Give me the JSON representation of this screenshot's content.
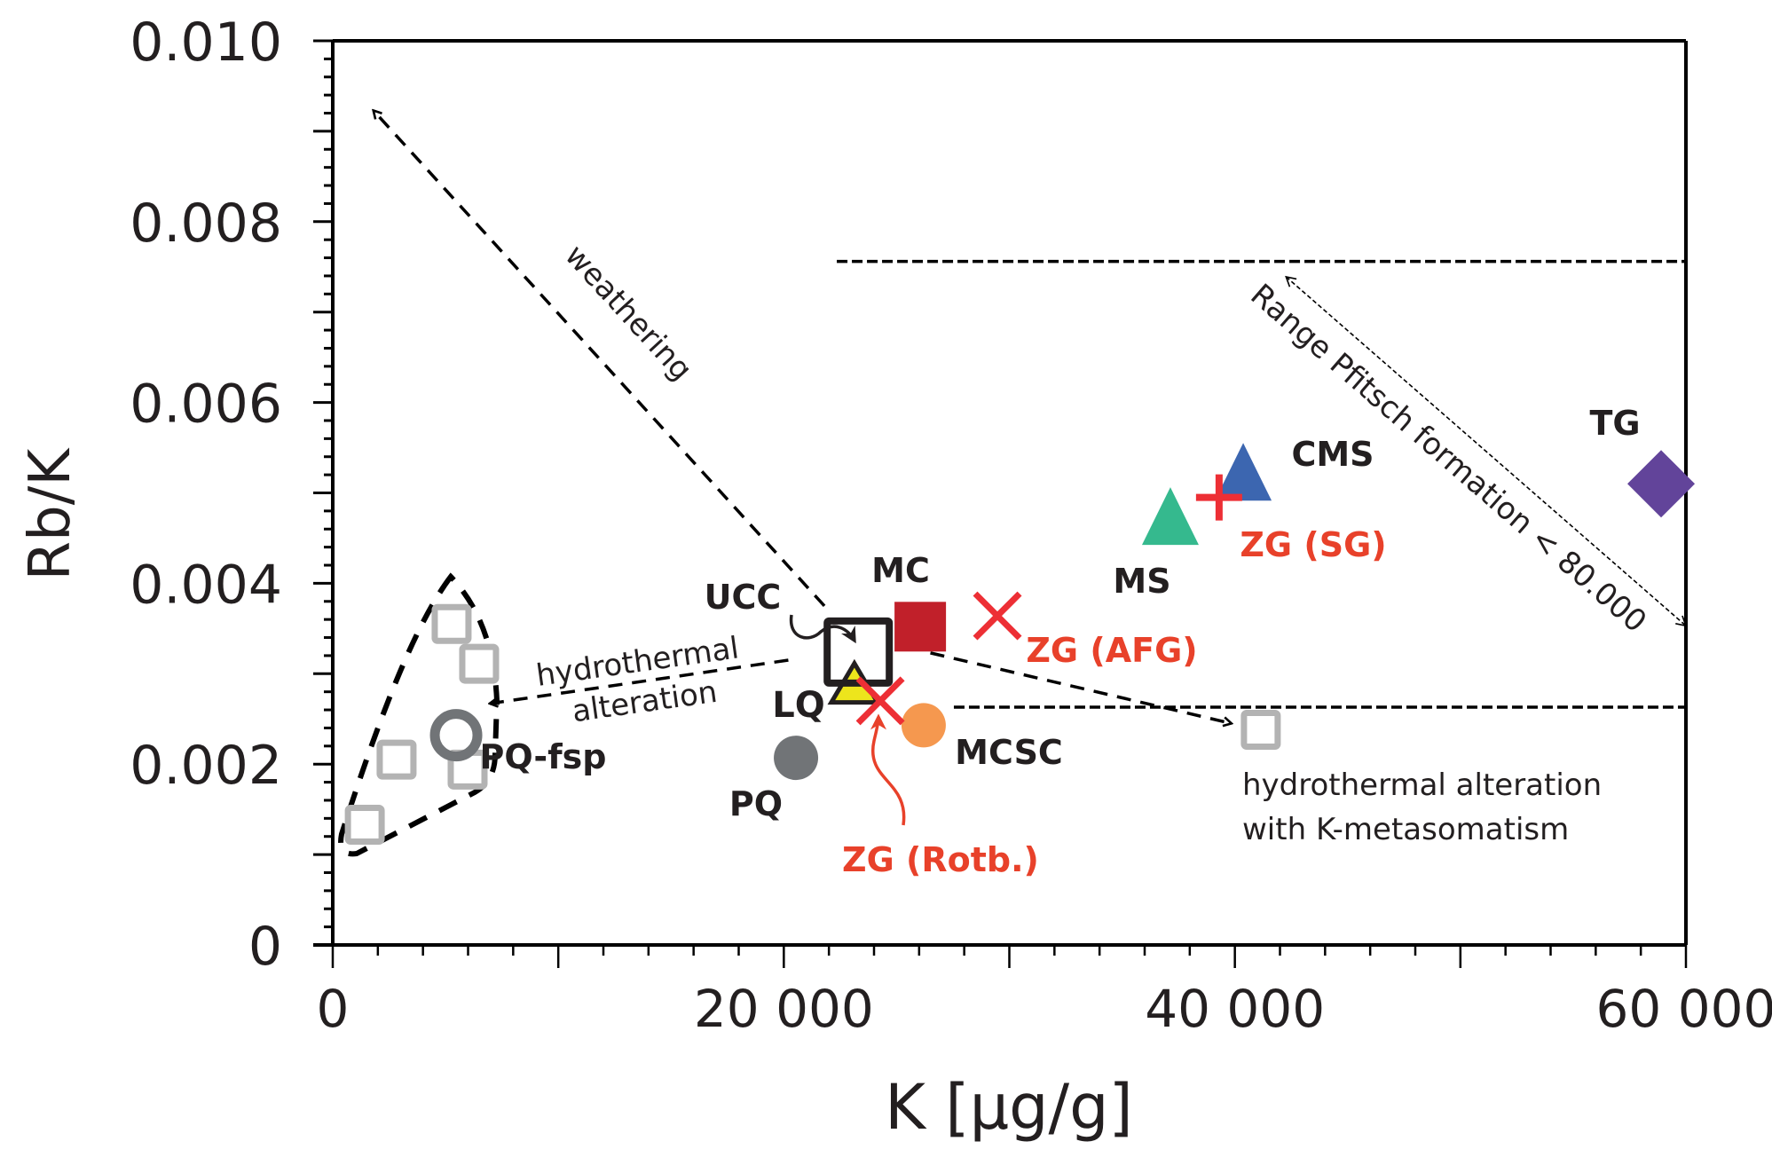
{
  "chart_data": {
    "type": "scatter",
    "title": "",
    "xlabel": "K [µg/g]",
    "ylabel": "Rb/K",
    "xlim": [
      0,
      60000
    ],
    "ylim": [
      0,
      0.01
    ],
    "x_major_step": 10000,
    "x_minor_step": 2000,
    "y_major_step": 0.001,
    "y_minor_step": 0.0002,
    "x_tick_labels": [
      {
        "value": 0,
        "text": "0"
      },
      {
        "value": 20000,
        "text": "20 000"
      },
      {
        "value": 40000,
        "text": "40 000"
      },
      {
        "value": 60000,
        "text": "60 000"
      }
    ],
    "y_tick_labels": [
      {
        "value": 0,
        "text": "0"
      },
      {
        "value": 0.002,
        "text": "0.002"
      },
      {
        "value": 0.004,
        "text": "0.004"
      },
      {
        "value": 0.006,
        "text": "0.006"
      },
      {
        "value": 0.008,
        "text": "0.008"
      },
      {
        "value": 0.01,
        "text": "0.010"
      }
    ],
    "grid": false,
    "series": [
      {
        "name": "UCC",
        "marker": "open-square-thick",
        "color": "#231f20",
        "points": [
          {
            "x": 23300,
            "y": 0.00324
          }
        ]
      },
      {
        "name": "MC",
        "marker": "filled-square",
        "color": "#c1202a",
        "points": [
          {
            "x": 26050,
            "y": 0.00352
          }
        ]
      },
      {
        "name": "ZG (AFG)",
        "marker": "x-cross",
        "color": "#ed2f35",
        "points": [
          {
            "x": 29470,
            "y": 0.00364
          }
        ]
      },
      {
        "name": "LQ",
        "marker": "triangle-outlined",
        "color": "#ede51c",
        "points": [
          {
            "x": 23130,
            "y": 0.00282
          }
        ]
      },
      {
        "name": "ZG (Rotb.)",
        "marker": "x-cross",
        "color": "#ed2f35",
        "points": [
          {
            "x": 24280,
            "y": 0.0027
          }
        ]
      },
      {
        "name": "MCSC",
        "marker": "filled-circle",
        "color": "#f5984f",
        "points": [
          {
            "x": 26200,
            "y": 0.00243
          }
        ]
      },
      {
        "name": "PQ",
        "marker": "filled-circle",
        "color": "#717477",
        "points": [
          {
            "x": 20540,
            "y": 0.00207
          }
        ]
      },
      {
        "name": "MS",
        "marker": "filled-triangle",
        "color": "#35b98e",
        "points": [
          {
            "x": 37140,
            "y": 0.00466
          }
        ]
      },
      {
        "name": "CMS",
        "marker": "filled-triangle",
        "color": "#3c66b0",
        "points": [
          {
            "x": 40370,
            "y": 0.00515
          }
        ]
      },
      {
        "name": "ZG (SG)",
        "marker": "plus",
        "color": "#ed2f35",
        "points": [
          {
            "x": 39300,
            "y": 0.00495
          }
        ]
      },
      {
        "name": "TG",
        "marker": "filled-diamond",
        "color": "#62449a",
        "points": [
          {
            "x": 58900,
            "y": 0.0051
          }
        ]
      },
      {
        "name": "PQ-fsp",
        "marker": "open-circle",
        "color": "#717477",
        "points": [
          {
            "x": 5470,
            "y": 0.00232
          }
        ]
      },
      {
        "name": "PQ-fsp samples",
        "marker": "open-square",
        "color": "#b3b3b3",
        "points": [
          {
            "x": 5270,
            "y": 0.00355
          },
          {
            "x": 6490,
            "y": 0.00311
          },
          {
            "x": 2830,
            "y": 0.00205
          },
          {
            "x": 5980,
            "y": 0.00194
          },
          {
            "x": 1420,
            "y": 0.00133
          }
        ]
      },
      {
        "name": "hydrothermal alteration with K-metasomatism",
        "marker": "open-square",
        "color": "#b3b3b3",
        "points": [
          {
            "x": 41150,
            "y": 0.00238
          }
        ]
      }
    ],
    "reference_lines": [
      {
        "name": "Range Pfitsch formation upper",
        "y": 0.00756,
        "x_from": 22350,
        "x_to": 60000,
        "style": "dashed"
      },
      {
        "name": "Range Pfitsch formation lower",
        "y": 0.00263,
        "x_from": 27540,
        "x_to": 60000,
        "style": "dashed"
      }
    ],
    "annotations": [
      {
        "id": "weathering",
        "text": "weathering",
        "arrow_from": {
          "x": 21800,
          "y": 0.00375
        },
        "arrow_to": {
          "x": 1800,
          "y": 0.00923
        }
      },
      {
        "id": "hydro_left",
        "text": [
          "hydrothermal",
          "alteration"
        ],
        "arrow_from": {
          "x": 20200,
          "y": 0.00315
        },
        "arrow_to": {
          "x": 6960,
          "y": 0.00267
        }
      },
      {
        "id": "hydro_right",
        "text": [
          "hydrothermal alteration",
          "with K-metasomatism"
        ],
        "arrow_from": {
          "x": 26500,
          "y": 0.00323
        },
        "arrow_to": {
          "x": 39850,
          "y": 0.00245
        }
      },
      {
        "id": "pfitsch",
        "text": "Range Pfitsch formation < 80.000",
        "arrow_from": {
          "x": 42270,
          "y": 0.00739
        },
        "arrow_to": {
          "x": 60000,
          "y": 0.00353
        }
      }
    ],
    "labels": {
      "UCC": "UCC",
      "MC": "MC",
      "ZG_AFG": "ZG (AFG)",
      "LQ": "LQ",
      "ZG_Rotb": "ZG (Rotb.)",
      "MCSC": "MCSC",
      "PQ": "PQ",
      "MS": "MS",
      "CMS": "CMS",
      "ZG_SG": "ZG (SG)",
      "TG": "TG",
      "PQ_fsp": "PQ-fsp"
    },
    "colors": {
      "axis": "#000000",
      "text": "#231f20",
      "red_label": "#e8412a"
    }
  }
}
